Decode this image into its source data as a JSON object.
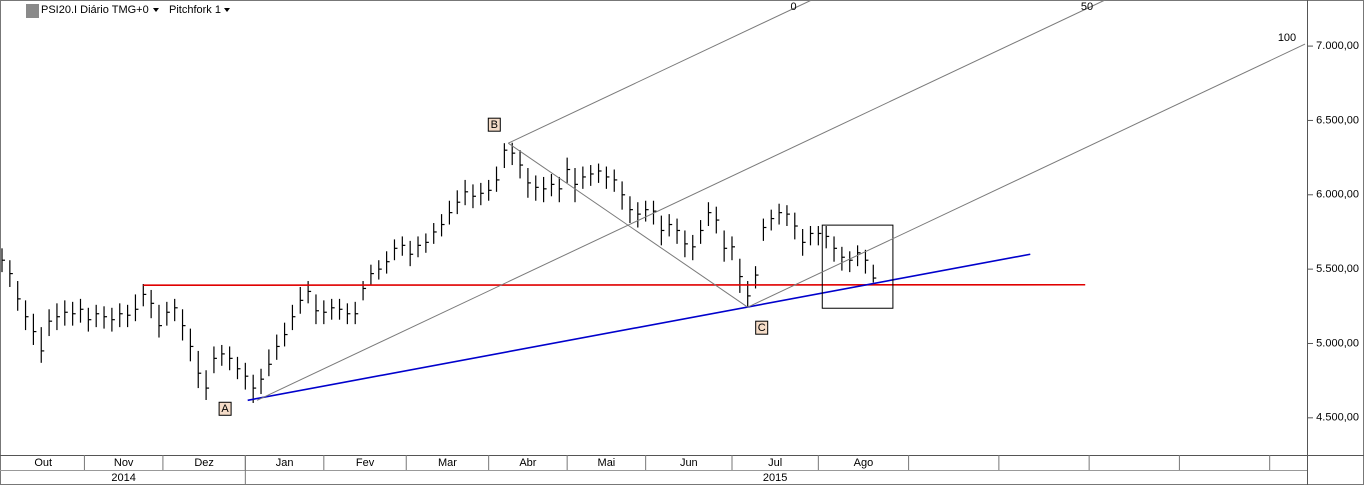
{
  "header": {
    "symbol": "PSI20.I Diário TMG+0",
    "study": "Pitchfork 1"
  },
  "chart_data": {
    "type": "ohlc",
    "ylim": [
      4250,
      7310
    ],
    "yticks": [
      {
        "value": 4500,
        "label": "4.500,00"
      },
      {
        "value": 5000,
        "label": "5.000,00"
      },
      {
        "value": 5500,
        "label": "5.500,00"
      },
      {
        "value": 6000,
        "label": "6.000,00"
      },
      {
        "value": 6500,
        "label": "6.500,00"
      },
      {
        "value": 7000,
        "label": "7.000,00"
      }
    ],
    "xlim": [
      0,
      166
    ],
    "xticks": [
      {
        "value": 0,
        "label": "Out"
      },
      {
        "value": 10.5,
        "label": "Nov"
      },
      {
        "value": 20.5,
        "label": "Dez"
      },
      {
        "value": 31,
        "label": "Jan"
      },
      {
        "value": 41,
        "label": "Fev"
      },
      {
        "value": 51.5,
        "label": "Mar"
      },
      {
        "value": 62,
        "label": "Abr"
      },
      {
        "value": 72,
        "label": "Mai"
      },
      {
        "value": 82,
        "label": "Jun"
      },
      {
        "value": 93,
        "label": "Jul"
      },
      {
        "value": 104,
        "label": "Ago"
      }
    ],
    "xminor": [
      115.5,
      127,
      138.5,
      150,
      161.5
    ],
    "years": [
      {
        "value": 0,
        "label": "2014"
      },
      {
        "value": 31,
        "label": "2015"
      }
    ],
    "series": [
      {
        "color": "#000000",
        "high": [
          5640,
          5560,
          5420,
          5290,
          5200,
          5110,
          5230,
          5270,
          5290,
          5280,
          5300,
          5240,
          5260,
          5250,
          5240,
          5270,
          5260,
          5330,
          5400,
          5360,
          5260,
          5280,
          5300,
          5230,
          5100,
          4950,
          4820,
          4980,
          4990,
          4980,
          4910,
          4870,
          4790,
          4830,
          4960,
          5060,
          5140,
          5260,
          5380,
          5420,
          5330,
          5290,
          5300,
          5300,
          5270,
          5280,
          5420,
          5530,
          5560,
          5620,
          5700,
          5720,
          5690,
          5720,
          5740,
          5810,
          5870,
          5960,
          6030,
          6100,
          6070,
          6080,
          6100,
          6190,
          6347,
          6350,
          6300,
          6180,
          6130,
          6120,
          6140,
          6120,
          6250,
          6180,
          6190,
          6200,
          6210,
          6190,
          6170,
          6090,
          5990,
          5950,
          5960,
          5960,
          5860,
          5870,
          5840,
          5760,
          5730,
          5830,
          5950,
          5920,
          5760,
          5720,
          5570,
          5420,
          5520,
          5840,
          5900,
          5940,
          5930,
          5880,
          5770,
          5790,
          5790,
          5790,
          5720,
          5650,
          5620,
          5660,
          5630,
          5530
        ],
        "low": [
          5480,
          5380,
          5220,
          5090,
          4990,
          4870,
          5050,
          5090,
          5120,
          5120,
          5140,
          5080,
          5110,
          5100,
          5080,
          5110,
          5110,
          5150,
          5250,
          5170,
          5040,
          5120,
          5150,
          5020,
          4880,
          4700,
          4620,
          4800,
          4850,
          4820,
          4760,
          4690,
          4600,
          4660,
          4780,
          4890,
          4980,
          5090,
          5200,
          5270,
          5130,
          5130,
          5160,
          5160,
          5130,
          5130,
          5290,
          5390,
          5430,
          5470,
          5560,
          5590,
          5520,
          5580,
          5610,
          5670,
          5720,
          5800,
          5870,
          5930,
          5910,
          5930,
          5960,
          6020,
          6180,
          6200,
          6110,
          5980,
          5960,
          5950,
          5990,
          5950,
          6080,
          5950,
          6040,
          6060,
          6080,
          6040,
          6020,
          5900,
          5810,
          5780,
          5820,
          5800,
          5660,
          5720,
          5670,
          5580,
          5560,
          5670,
          5790,
          5740,
          5550,
          5560,
          5340,
          5244,
          5370,
          5690,
          5760,
          5800,
          5790,
          5700,
          5590,
          5660,
          5660,
          5640,
          5550,
          5490,
          5480,
          5520,
          5470,
          5410
        ],
        "close": [
          5560,
          5470,
          5300,
          5180,
          5080,
          4950,
          5150,
          5180,
          5210,
          5200,
          5230,
          5160,
          5200,
          5180,
          5160,
          5200,
          5190,
          5230,
          5330,
          5270,
          5120,
          5210,
          5240,
          5120,
          4980,
          4800,
          4700,
          4900,
          4930,
          4900,
          4830,
          4780,
          4700,
          4760,
          4860,
          4980,
          5060,
          5180,
          5290,
          5350,
          5220,
          5210,
          5240,
          5230,
          5200,
          5200,
          5370,
          5470,
          5500,
          5550,
          5640,
          5660,
          5600,
          5660,
          5680,
          5750,
          5800,
          5880,
          5950,
          6020,
          5990,
          6010,
          6030,
          6100,
          6300,
          6280,
          6200,
          6080,
          6050,
          6040,
          6070,
          6040,
          6170,
          6070,
          6120,
          6140,
          6160,
          6120,
          6100,
          6000,
          5900,
          5870,
          5900,
          5890,
          5760,
          5800,
          5760,
          5670,
          5650,
          5760,
          5880,
          5830,
          5640,
          5650,
          5450,
          5320,
          5460,
          5780,
          5840,
          5880,
          5870,
          5790,
          5680,
          5740,
          5740,
          5720,
          5640,
          5580,
          5560,
          5610,
          5560,
          5440
        ]
      }
    ],
    "pitchfork": {
      "x": [
        32.5,
        64.5,
        95
      ],
      "y": [
        4618,
        6347,
        5244
      ],
      "labels": [
        "A",
        "B",
        "C"
      ],
      "level_labels": [
        "0",
        "50",
        "100"
      ],
      "color": "#7a7a7a"
    },
    "trendlines": [
      {
        "color": "#e00000",
        "x": [
          18,
          138
        ],
        "y": [
          5392,
          5395
        ]
      },
      {
        "color": "#0000cc",
        "x": [
          31.3,
          131
        ],
        "y": [
          4618,
          5600
        ]
      }
    ],
    "box": {
      "x": [
        104.5,
        113.5
      ],
      "y": [
        5237,
        5796
      ]
    }
  }
}
